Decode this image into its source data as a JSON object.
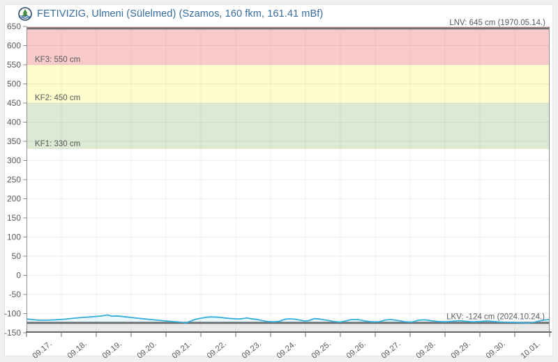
{
  "header": {
    "title": "FETIVIZIG, Ulmeni (Sülelmed) (Szamos, 160 fkm, 161.41 mBf)",
    "title_color": "#356b9c",
    "logo_icon": "fetivizig-water-authority-logo"
  },
  "chart_data": {
    "type": "line",
    "title": "FETIVIZIG, Ulmeni (Sülelmed) (Szamos, 160 fkm, 161.41 mBf)",
    "ylabel": "",
    "xlabel": "",
    "y_unit": "cm",
    "ylim": [
      -150,
      650
    ],
    "ytick_step": 50,
    "ytick_labels": [
      "650",
      "600",
      "550",
      "500",
      "450",
      "400",
      "350",
      "300",
      "250",
      "200",
      "150",
      "100",
      "50",
      "0",
      "-50",
      "-100",
      "-150"
    ],
    "x_categories": [
      "09.17.",
      "09.18.",
      "09.19.",
      "09.20.",
      "09.21.",
      "09.22.",
      "09.23.",
      "09.24.",
      "09.25.",
      "09.26.",
      "09.27.",
      "09.28.",
      "09.29.",
      "09.30.",
      "10.01."
    ],
    "grid": true,
    "legend": "none",
    "alert_bands": [
      {
        "name": "KF3",
        "from": 550,
        "to": 650,
        "color": "#f9caca",
        "label": "KF3: 550 cm"
      },
      {
        "name": "KF2",
        "from": 450,
        "to": 550,
        "color": "#fcfccd",
        "label": "KF2: 450 cm"
      },
      {
        "name": "KF1",
        "from": 330,
        "to": 450,
        "color": "#dcead3",
        "label": "KF1: 330 cm"
      }
    ],
    "low_band": {
      "from": -150,
      "to": -124,
      "color": "#e9e9e9"
    },
    "ref_lines": [
      {
        "name": "LNV",
        "value": 645,
        "label": "LNV: 645 cm (1970.05.14.)",
        "position": "top"
      },
      {
        "name": "LKV",
        "value": -124,
        "label": "LKV: -124 cm (2024.10.24.)",
        "position": "bottom"
      }
    ],
    "series": [
      {
        "color": "#35aedd",
        "area_fill": "rgba(53,174,221,0.10)",
        "points": [
          [
            0,
            -114
          ],
          [
            0.15,
            -115.5
          ],
          [
            0.35,
            -117
          ],
          [
            0.6,
            -117
          ],
          [
            0.85,
            -116
          ],
          [
            1.1,
            -114.5
          ],
          [
            1.35,
            -112
          ],
          [
            1.6,
            -110
          ],
          [
            1.85,
            -108.5
          ],
          [
            2.05,
            -107
          ],
          [
            2.2,
            -105.5
          ],
          [
            2.32,
            -103.5
          ],
          [
            2.45,
            -106.5
          ],
          [
            2.6,
            -106
          ],
          [
            2.85,
            -108.5
          ],
          [
            3.1,
            -111
          ],
          [
            3.4,
            -114
          ],
          [
            3.7,
            -116.5
          ],
          [
            4.0,
            -119
          ],
          [
            4.25,
            -121
          ],
          [
            4.45,
            -122.5
          ],
          [
            4.56,
            -124.5
          ],
          [
            4.7,
            -120
          ],
          [
            4.85,
            -114.5
          ],
          [
            5.0,
            -112
          ],
          [
            5.15,
            -109.5
          ],
          [
            5.3,
            -108.5
          ],
          [
            5.5,
            -109.5
          ],
          [
            5.7,
            -111.5
          ],
          [
            5.9,
            -113
          ],
          [
            6.1,
            -114
          ],
          [
            6.24,
            -112.5
          ],
          [
            6.32,
            -111
          ],
          [
            6.42,
            -113
          ],
          [
            6.6,
            -115
          ],
          [
            6.75,
            -118
          ],
          [
            6.9,
            -120.5
          ],
          [
            7.1,
            -121.5
          ],
          [
            7.25,
            -120
          ],
          [
            7.42,
            -114.5
          ],
          [
            7.55,
            -113.5
          ],
          [
            7.7,
            -114.5
          ],
          [
            7.85,
            -117
          ],
          [
            8.0,
            -119.5
          ],
          [
            8.1,
            -118
          ],
          [
            8.25,
            -113
          ],
          [
            8.4,
            -114
          ],
          [
            8.6,
            -117
          ],
          [
            8.8,
            -120.5
          ],
          [
            9.0,
            -122
          ],
          [
            9.15,
            -119
          ],
          [
            9.32,
            -115.5
          ],
          [
            9.5,
            -115.5
          ],
          [
            9.7,
            -119
          ],
          [
            9.9,
            -121.5
          ],
          [
            10.1,
            -121.5
          ],
          [
            10.3,
            -116.5
          ],
          [
            10.45,
            -115.5
          ],
          [
            10.65,
            -118
          ],
          [
            10.85,
            -121
          ],
          [
            11.05,
            -122
          ],
          [
            11.25,
            -117
          ],
          [
            11.42,
            -116
          ],
          [
            11.6,
            -118.5
          ],
          [
            11.8,
            -120.5
          ],
          [
            12.0,
            -121.5
          ],
          [
            12.2,
            -120
          ],
          [
            12.4,
            -118.5
          ],
          [
            12.6,
            -120
          ],
          [
            12.8,
            -121.5
          ],
          [
            13.0,
            -120.5
          ],
          [
            13.2,
            -119
          ],
          [
            13.4,
            -120.5
          ],
          [
            13.6,
            -122
          ],
          [
            13.8,
            -122.5
          ],
          [
            14.0,
            -123
          ],
          [
            14.2,
            -124
          ],
          [
            14.4,
            -124.5
          ],
          [
            14.55,
            -122.5
          ],
          [
            14.7,
            -119
          ],
          [
            14.85,
            -116.5
          ],
          [
            15,
            -115.5
          ]
        ]
      }
    ],
    "colors": {
      "axis": "#8f8f8f",
      "bottom_axis": "#666666",
      "grid_h": "rgba(0,0,0,0.07)",
      "grid_v": "rgba(0,0,0,0.055)",
      "ref_line": "#6f6f6f",
      "tick_label": "#57595b"
    }
  }
}
